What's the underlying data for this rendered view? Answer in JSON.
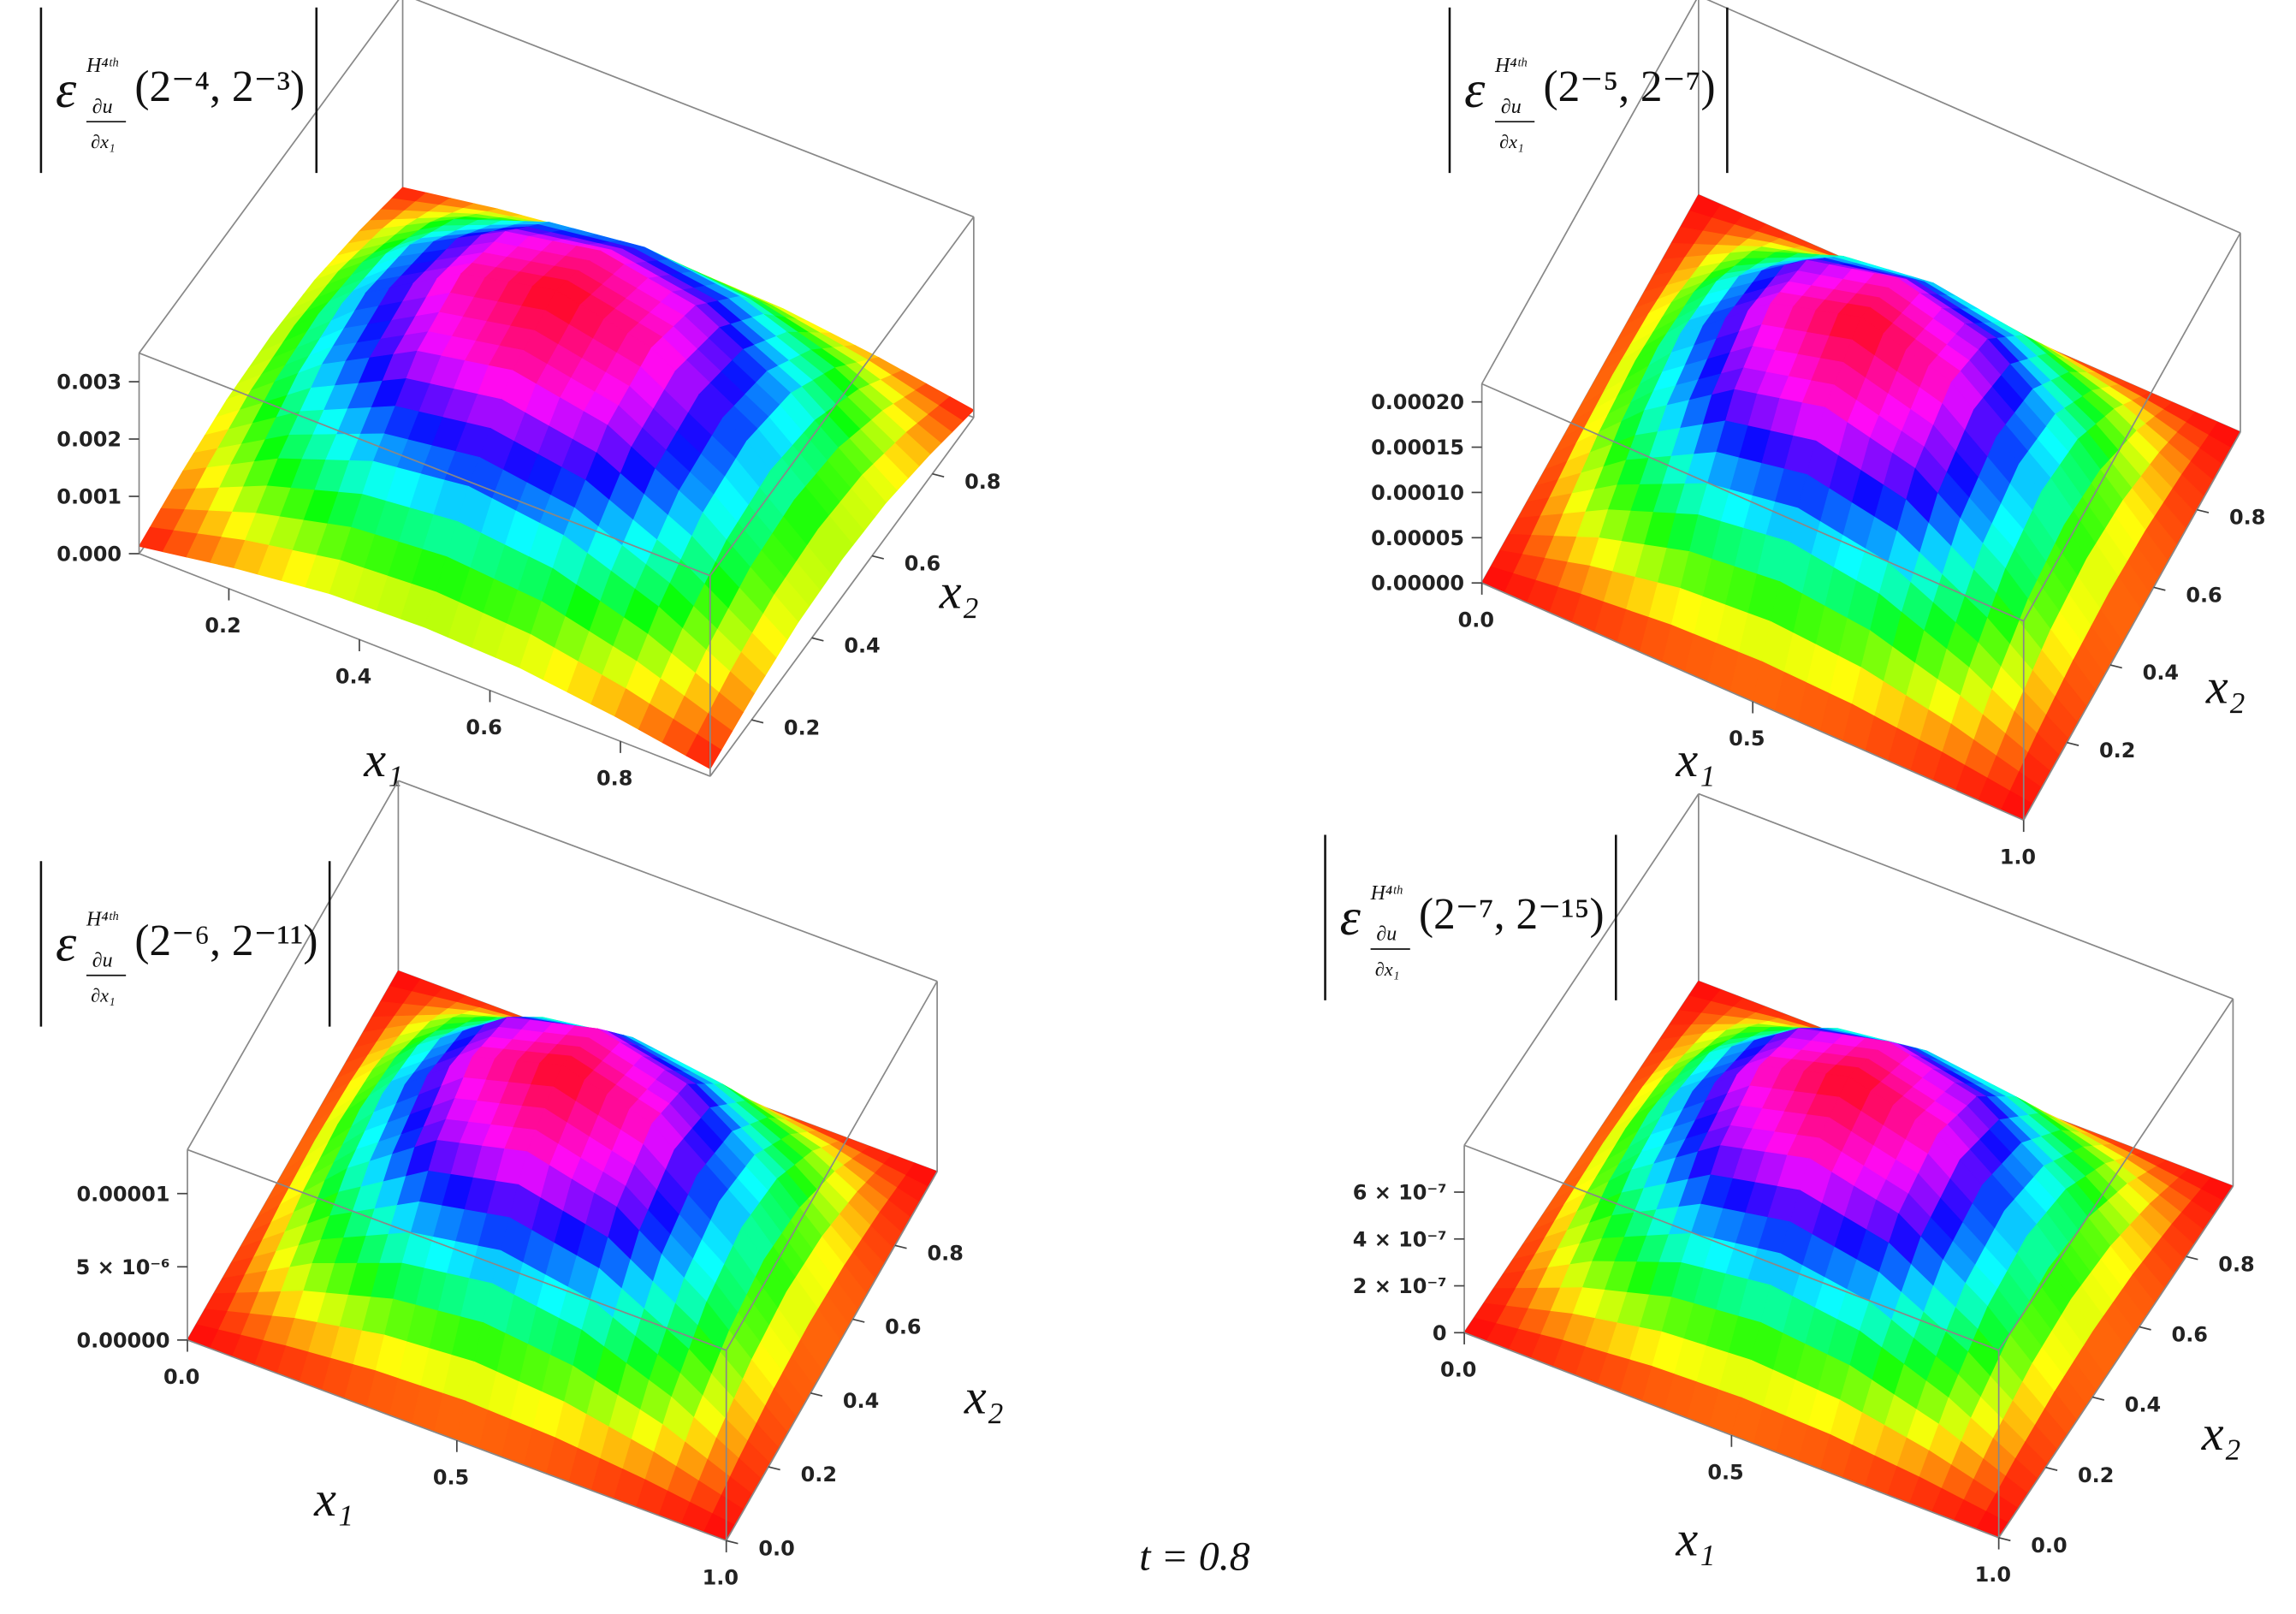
{
  "chart_data": [
    {
      "type": "surface",
      "title_symbol": "ε",
      "title_superscript": "H⁴ᵗʰ",
      "title_numerator": "∂u",
      "title_denominator": "∂x₁",
      "title": "(2⁻⁴, 2⁻³)",
      "x_label": "x₁",
      "y_label": "x₂",
      "x": [
        0.0625,
        0.2083,
        0.3542,
        0.5,
        0.6458,
        0.7917,
        0.9375
      ],
      "y": [
        0.0625,
        0.2083,
        0.3542,
        0.5,
        0.6458,
        0.7917,
        0.9375
      ],
      "z": [
        [
          0.00013,
          0.0004,
          0.0006,
          0.00066,
          0.0006,
          0.0004,
          0.00013
        ],
        [
          0.0004,
          0.00126,
          0.00186,
          0.00207,
          0.00186,
          0.00126,
          0.0004
        ],
        [
          0.0006,
          0.00186,
          0.00274,
          0.00305,
          0.00274,
          0.00186,
          0.0006
        ],
        [
          0.00066,
          0.00207,
          0.00305,
          0.0034,
          0.00305,
          0.00207,
          0.00066
        ],
        [
          0.0006,
          0.00186,
          0.00274,
          0.00305,
          0.00274,
          0.00186,
          0.0006
        ],
        [
          0.0004,
          0.00126,
          0.00186,
          0.00207,
          0.00186,
          0.00126,
          0.0004
        ],
        [
          0.00013,
          0.0004,
          0.0006,
          0.00066,
          0.0006,
          0.0004,
          0.00013
        ]
      ],
      "xlim": [
        0.0625,
        0.9375
      ],
      "ylim": [
        0.0625,
        0.9375
      ],
      "zlim": [
        0,
        0.0035
      ],
      "xticks": [
        0.2,
        0.4,
        0.6,
        0.8
      ],
      "yticks": [
        0.2,
        0.4,
        0.6,
        0.8
      ],
      "zticks": [
        {
          "value": 0,
          "label": "0.000"
        },
        {
          "value": 0.001,
          "label": "0.001"
        },
        {
          "value": 0.002,
          "label": "0.002"
        },
        {
          "value": 0.003,
          "label": "0.003"
        }
      ]
    },
    {
      "type": "surface",
      "title_symbol": "ε",
      "title_superscript": "H⁴ᵗʰ",
      "title_numerator": "∂u",
      "title_denominator": "∂x₁",
      "title": "(2⁻⁵, 2⁻⁷)",
      "x_label": "x₁",
      "y_label": "x₂",
      "x": [
        0,
        0.1667,
        0.3333,
        0.5,
        0.6667,
        0.8333,
        1
      ],
      "y": [
        0,
        0.1667,
        0.3333,
        0.5,
        0.6667,
        0.8333,
        1
      ],
      "z": [
        [
          0,
          0,
          0,
          0,
          0,
          0,
          0
        ],
        [
          0,
          5.3e-05,
          9.1e-05,
          0.000105,
          9.1e-05,
          5.3e-05,
          0
        ],
        [
          0,
          9.1e-05,
          0.000158,
          0.000182,
          0.000158,
          9.1e-05,
          0
        ],
        [
          0,
          0.000105,
          0.000182,
          0.00021,
          0.000182,
          0.000105,
          0
        ],
        [
          0,
          9.1e-05,
          0.000158,
          0.000182,
          0.000158,
          9.1e-05,
          0
        ],
        [
          0,
          5.3e-05,
          9.1e-05,
          0.000105,
          9.1e-05,
          5.3e-05,
          0
        ],
        [
          0,
          0,
          0,
          0,
          0,
          0,
          0
        ]
      ],
      "xlim": [
        0,
        1
      ],
      "ylim": [
        0,
        1
      ],
      "zlim": [
        0,
        0.00022
      ],
      "xticks": [
        {
          "value": 0,
          "label": "0.0"
        },
        0.5,
        {
          "value": 1,
          "label": "1.0"
        }
      ],
      "yticks": [
        0.2,
        0.4,
        0.6,
        0.8
      ],
      "zticks": [
        {
          "value": 0,
          "label": "0.00000"
        },
        {
          "value": 5e-05,
          "label": "0.00005"
        },
        {
          "value": 0.0001,
          "label": "0.00010"
        },
        {
          "value": 0.00015,
          "label": "0.00015"
        },
        {
          "value": 0.0002,
          "label": "0.00020"
        }
      ]
    },
    {
      "type": "surface",
      "title_symbol": "ε",
      "title_superscript": "H⁴ᵗʰ",
      "title_numerator": "∂u",
      "title_denominator": "∂x₁",
      "title": "(2⁻⁶, 2⁻¹¹)",
      "x_label": "x₁",
      "y_label": "x₂",
      "x": [
        0,
        0.1667,
        0.3333,
        0.5,
        0.6667,
        0.8333,
        1
      ],
      "y": [
        0,
        0.1667,
        0.3333,
        0.5,
        0.6667,
        0.8333,
        1
      ],
      "z": [
        [
          0,
          0,
          0,
          0,
          0,
          0,
          0
        ],
        [
          0,
          3.3e-06,
          5.6e-06,
          6.5e-06,
          5.6e-06,
          3.3e-06,
          0
        ],
        [
          0,
          5.6e-06,
          9.8e-06,
          1.13e-05,
          9.8e-06,
          5.6e-06,
          0
        ],
        [
          0,
          6.5e-06,
          1.13e-05,
          1.3e-05,
          1.13e-05,
          6.5e-06,
          0
        ],
        [
          0,
          5.6e-06,
          9.8e-06,
          1.13e-05,
          9.8e-06,
          5.6e-06,
          0
        ],
        [
          0,
          3.3e-06,
          5.6e-06,
          6.5e-06,
          5.6e-06,
          3.3e-06,
          0
        ],
        [
          0,
          0,
          0,
          0,
          0,
          0,
          0
        ]
      ],
      "xlim": [
        0,
        1
      ],
      "ylim": [
        0,
        1
      ],
      "zlim": [
        0,
        1.3e-05
      ],
      "xticks": [
        {
          "value": 0,
          "label": "0.0"
        },
        0.5,
        {
          "value": 1,
          "label": "1.0"
        }
      ],
      "yticks": [
        {
          "value": 0,
          "label": "0.0"
        },
        0.2,
        0.4,
        0.6,
        0.8
      ],
      "zticks": [
        {
          "value": 0,
          "label": "0.00000"
        },
        {
          "value": 5e-06,
          "label": "5 × 10⁻⁶"
        },
        {
          "value": 1e-05,
          "label": "0.00001"
        }
      ]
    },
    {
      "type": "surface",
      "title_symbol": "ε",
      "title_superscript": "H⁴ᵗʰ",
      "title_numerator": "∂u",
      "title_denominator": "∂x₁",
      "title": "(2⁻⁷, 2⁻¹⁵)",
      "x_label": "x₁",
      "y_label": "x₂",
      "x": [
        0,
        0.1667,
        0.3333,
        0.5,
        0.6667,
        0.8333,
        1
      ],
      "y": [
        0,
        0.1667,
        0.3333,
        0.5,
        0.6667,
        0.8333,
        1
      ],
      "z": [
        [
          0,
          0,
          0,
          0,
          0,
          0,
          0
        ],
        [
          0,
          2e-07,
          3.4e-07,
          3.9e-07,
          3.4e-07,
          2e-07,
          0
        ],
        [
          0,
          3.4e-07,
          5.9e-07,
          6.8e-07,
          5.9e-07,
          3.4e-07,
          0
        ],
        [
          0,
          3.9e-07,
          6.8e-07,
          7.8e-07,
          6.8e-07,
          3.9e-07,
          0
        ],
        [
          0,
          3.4e-07,
          5.9e-07,
          6.8e-07,
          5.9e-07,
          3.4e-07,
          0
        ],
        [
          0,
          2e-07,
          3.4e-07,
          3.9e-07,
          3.4e-07,
          2e-07,
          0
        ],
        [
          0,
          0,
          0,
          0,
          0,
          0,
          0
        ]
      ],
      "xlim": [
        0,
        1
      ],
      "ylim": [
        0,
        1
      ],
      "zlim": [
        0,
        8e-07
      ],
      "xticks": [
        {
          "value": 0,
          "label": "0.0"
        },
        0.5,
        {
          "value": 1,
          "label": "1.0"
        }
      ],
      "yticks": [
        {
          "value": 0,
          "label": "0.0"
        },
        0.2,
        0.4,
        0.6,
        0.8
      ],
      "zticks": [
        {
          "value": 0,
          "label": "0"
        },
        {
          "value": 2e-07,
          "label": "2 × 10⁻⁷"
        },
        {
          "value": 4e-07,
          "label": "4 × 10⁻⁷"
        },
        {
          "value": 6e-07,
          "label": "6 × 10⁻⁷"
        }
      ]
    }
  ],
  "annotation": "t = 0.8"
}
